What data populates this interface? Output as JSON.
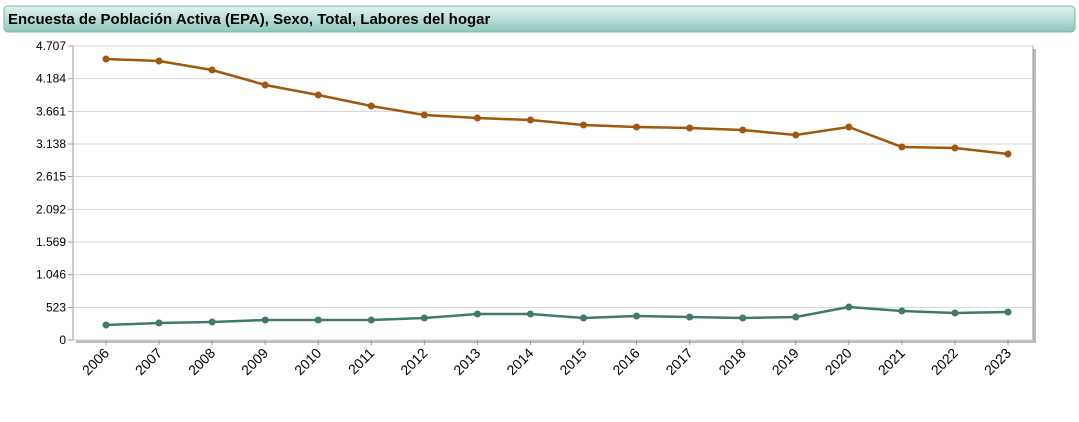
{
  "chart_data": {
    "type": "line",
    "title": "Encuesta de Población Activa (EPA), Sexo, Total, Labores del hogar",
    "categories": [
      "2006",
      "2007",
      "2008",
      "2009",
      "2010",
      "2011",
      "2012",
      "2013",
      "2014",
      "2015",
      "2016",
      "2017",
      "2018",
      "2019",
      "2020",
      "2021",
      "2022",
      "2023"
    ],
    "series": [
      {
        "color": "#a0570e",
        "values": [
          4499,
          4467,
          4323,
          4083,
          3923,
          3746,
          3602,
          3554,
          3522,
          3442,
          3410,
          3394,
          3362,
          3282,
          3410,
          3090,
          3074,
          2978
        ]
      },
      {
        "color": "#3f7a6a",
        "values": [
          240,
          272,
          288,
          320,
          320,
          320,
          352,
          416,
          416,
          352,
          384,
          368,
          352,
          368,
          528,
          464,
          432,
          448
        ]
      }
    ],
    "ylim": [
      0,
      4707
    ],
    "yticks": [
      0,
      523,
      {
        "value": 1046,
        "label": "1.046"
      },
      {
        "value": 1569,
        "label": "1.569"
      },
      {
        "value": 2092,
        "label": "2.092"
      },
      {
        "value": 2615,
        "label": "2.615"
      },
      {
        "value": 3138,
        "label": "3.138"
      },
      {
        "value": 3661,
        "label": "3.661"
      },
      {
        "value": 4184,
        "label": "4.184"
      },
      {
        "value": 4707,
        "label": "4.707"
      }
    ],
    "grid": true
  }
}
